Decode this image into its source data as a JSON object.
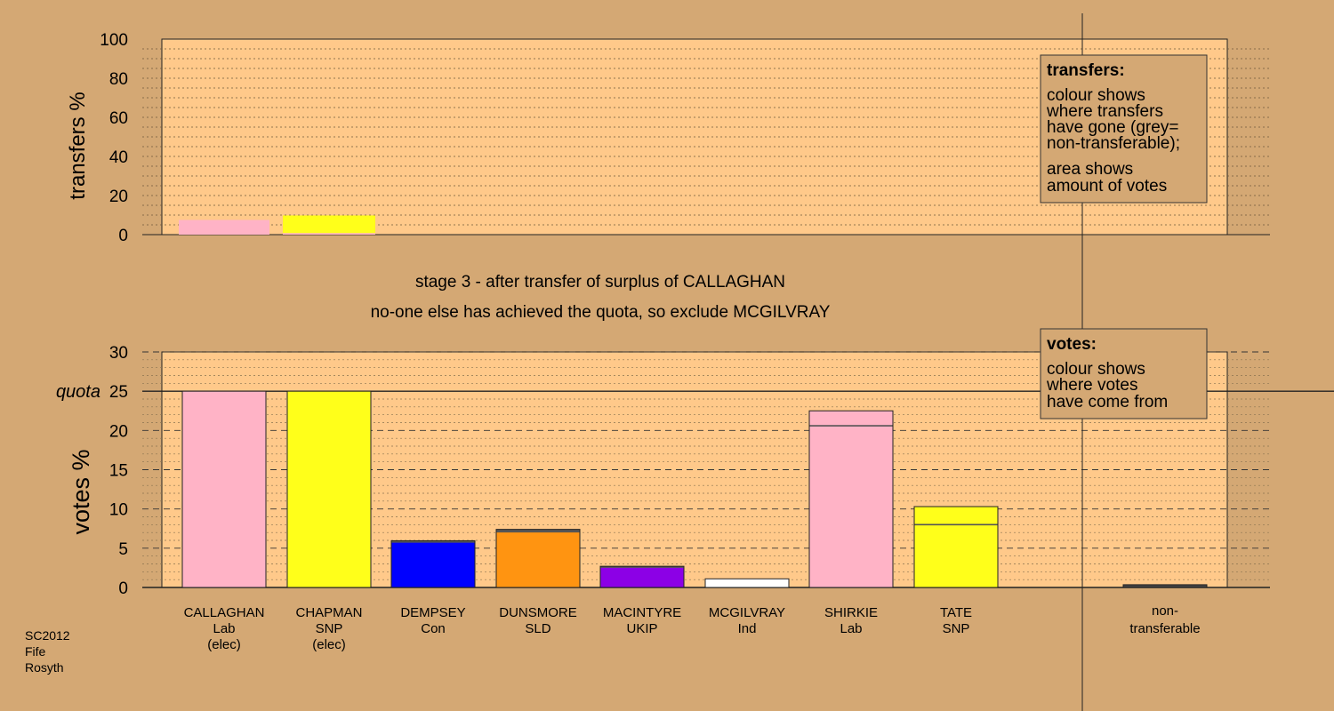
{
  "chart_data": [
    {
      "type": "bar",
      "name": "transfers",
      "ylabel": "transfers %",
      "ylim": [
        0,
        100
      ],
      "yticks": [
        0,
        20,
        40,
        60,
        80,
        100
      ],
      "grid": "dotted",
      "categories": [
        "CALLAGHAN",
        "CHAPMAN"
      ],
      "bars": [
        {
          "category": "CALLAGHAN",
          "segments": [
            {
              "value": 7.5,
              "color": "#ffb3c6"
            }
          ]
        },
        {
          "category": "CHAPMAN",
          "segments": [
            {
              "value": 0.8,
              "color": "#ffb3c6"
            },
            {
              "value": 9.0,
              "color": "#ffff1a"
            }
          ]
        }
      ],
      "legend": {
        "title": "transfers:",
        "lines": [
          "colour shows",
          "where transfers",
          "have gone (grey=",
          "non-transferable);",
          "area shows",
          "amount of votes"
        ]
      }
    },
    {
      "type": "bar",
      "name": "votes",
      "ylabel": "votes %",
      "ylim": [
        0,
        30
      ],
      "yticks": [
        0,
        5,
        10,
        15,
        20,
        25,
        30
      ],
      "quota": {
        "label": "quota",
        "value": 25
      },
      "grid": "dashed",
      "categories": [
        "CALLAGHAN",
        "CHAPMAN",
        "DEMPSEY",
        "DUNSMORE",
        "MACINTYRE",
        "MCGILVRAY",
        "SHIRKIE",
        "TATE",
        "non-transferable"
      ],
      "bars": [
        {
          "category": "CALLAGHAN",
          "segments": [
            {
              "value": 25.0,
              "color": "#ffb3c6"
            }
          ]
        },
        {
          "category": "CHAPMAN",
          "segments": [
            {
              "value": 25.0,
              "color": "#ffff1a"
            }
          ]
        },
        {
          "category": "DEMPSEY",
          "segments": [
            {
              "value": 5.8,
              "color": "#0000ff"
            },
            {
              "value": 0.15,
              "color": "#333333"
            }
          ]
        },
        {
          "category": "DUNSMORE",
          "segments": [
            {
              "value": 7.1,
              "color": "#ff9411"
            },
            {
              "value": 0.3,
              "color": "#555555"
            }
          ]
        },
        {
          "category": "MACINTYRE",
          "segments": [
            {
              "value": 2.6,
              "color": "#8c00e6"
            },
            {
              "value": 0.1,
              "color": "#333333"
            }
          ]
        },
        {
          "category": "MCGILVRAY",
          "segments": [
            {
              "value": 1.1,
              "color": "#ffffff"
            }
          ]
        },
        {
          "category": "SHIRKIE",
          "segments": [
            {
              "value": 20.6,
              "color": "#ffb3c6"
            },
            {
              "value": 1.9,
              "color": "#ffb3c6"
            }
          ]
        },
        {
          "category": "TATE",
          "segments": [
            {
              "value": 8.0,
              "color": "#ffff1a"
            },
            {
              "value": 2.3,
              "color": "#ffff1a"
            }
          ]
        },
        {
          "category": "non-transferable",
          "segments": [
            {
              "value": 0.35,
              "color": "#444444"
            }
          ]
        }
      ],
      "legend": {
        "title": "votes:",
        "lines": [
          "colour shows",
          "where votes",
          "have come from"
        ]
      }
    }
  ],
  "candidates": [
    {
      "name": "CALLAGHAN",
      "party": "Lab",
      "status": "(elec)"
    },
    {
      "name": "CHAPMAN",
      "party": "SNP",
      "status": "(elec)"
    },
    {
      "name": "DEMPSEY",
      "party": "Con",
      "status": ""
    },
    {
      "name": "DUNSMORE",
      "party": "SLD",
      "status": ""
    },
    {
      "name": "MACINTYRE",
      "party": "UKIP",
      "status": ""
    },
    {
      "name": "MCGILVRAY",
      "party": "Ind",
      "status": ""
    },
    {
      "name": "SHIRKIE",
      "party": "Lab",
      "status": ""
    },
    {
      "name": "TATE",
      "party": "SNP",
      "status": ""
    }
  ],
  "nontransferable_label": [
    "non-",
    "transferable"
  ],
  "stage_line_1": "stage 3 - after transfer of surplus of CALLAGHAN",
  "stage_line_2": "no-one else has achieved the quota, so exclude MCGILVRAY",
  "footer": [
    "SC2012",
    "Fife",
    "Rosyth"
  ],
  "colors": {
    "background": "#d4a874",
    "plot_area": "#ffc98a",
    "labour": "#ffb3c6",
    "snp": "#ffff1a",
    "conservative": "#0000ff",
    "sld": "#ff9411",
    "ukip": "#8c00e6",
    "independent": "#ffffff"
  }
}
